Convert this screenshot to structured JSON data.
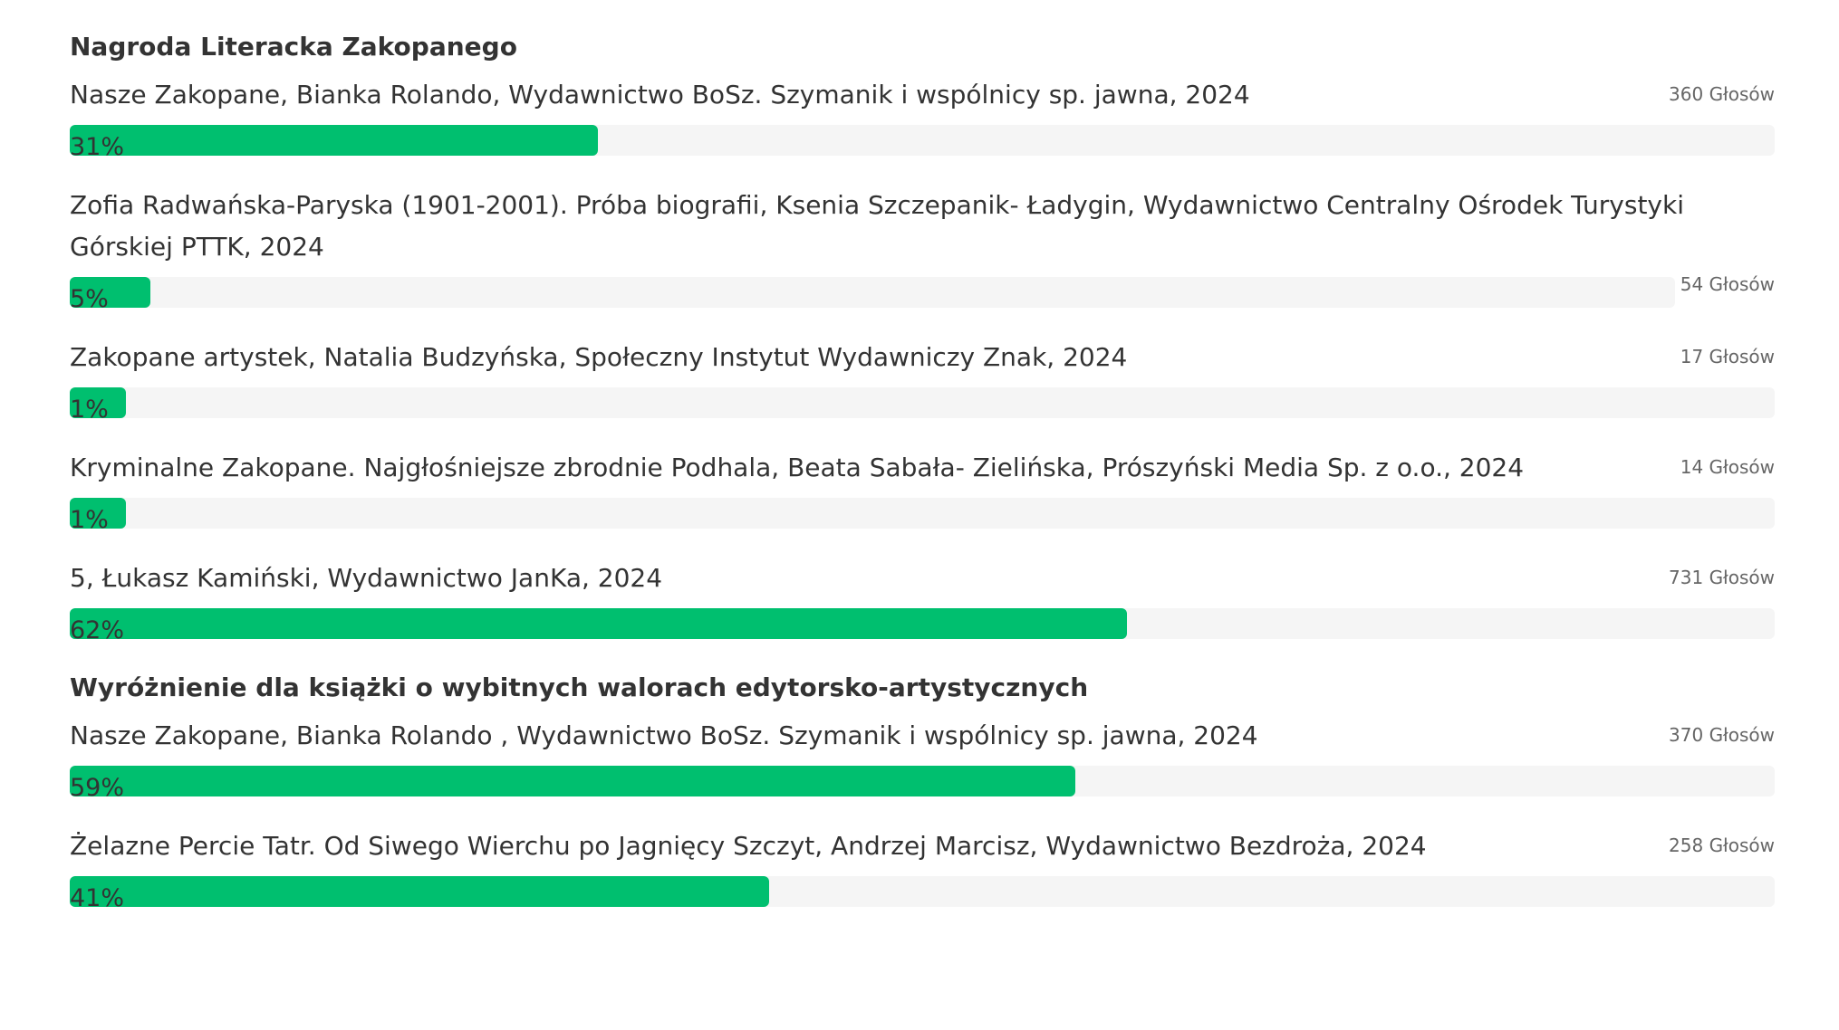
{
  "sections": [
    {
      "title": "Nagroda Literacka Zakopanego",
      "items": [
        {
          "label": "Nasze Zakopane, Bianka Rolando, Wydawnictwo BoSz. Szymanik i wspólnicy sp. jawna, 2024",
          "votes": "360 Głosów",
          "percent_label": "31%",
          "percent": 31
        },
        {
          "label": "Zofia Radwańska-Paryska (1901-2001). Próba biografii, Ksenia Szczepanik- Ładygin, Wydawnictwo Centralny Ośrodek Turystyki Górskiej PTTK, 2024",
          "votes": "54 Głosów",
          "percent_label": "5%",
          "percent": 5
        },
        {
          "label": "Zakopane artystek, Natalia Budzyńska, Społeczny Instytut Wydawniczy Znak, 2024",
          "votes": "17 Głosów",
          "percent_label": "1%",
          "percent": 1
        },
        {
          "label": "Kryminalne Zakopane. Najgłośniejsze zbrodnie Podhala, Beata Sabała- Zielińska, Prószyński Media Sp. z o.o., 2024",
          "votes": "14 Głosów",
          "percent_label": "1%",
          "percent": 1
        },
        {
          "label": "5, Łukasz Kamiński, Wydawnictwo JanKa, 2024",
          "votes": "731 Głosów",
          "percent_label": "62%",
          "percent": 62
        }
      ]
    },
    {
      "title": "Wyróżnienie dla książki o wybitnych walorach edytorsko-artystycznych",
      "items": [
        {
          "label": "Nasze Zakopane, Bianka Rolando , Wydawnictwo BoSz. Szymanik i wspólnicy sp. jawna, 2024",
          "votes": "370 Głosów",
          "percent_label": "59%",
          "percent": 59
        },
        {
          "label": "Żelazne Percie Tatr. Od Siwego Wierchu po Jagnięcy Szczyt, Andrzej Marcisz, Wydawnictwo Bezdroża, 2024",
          "votes": "258 Głosów",
          "percent_label": "41%",
          "percent": 41
        }
      ]
    }
  ],
  "colors": {
    "bar_fill": "#00bf6f",
    "bar_track": "#f5f5f5",
    "text": "#333333",
    "votes_text": "#666666"
  }
}
